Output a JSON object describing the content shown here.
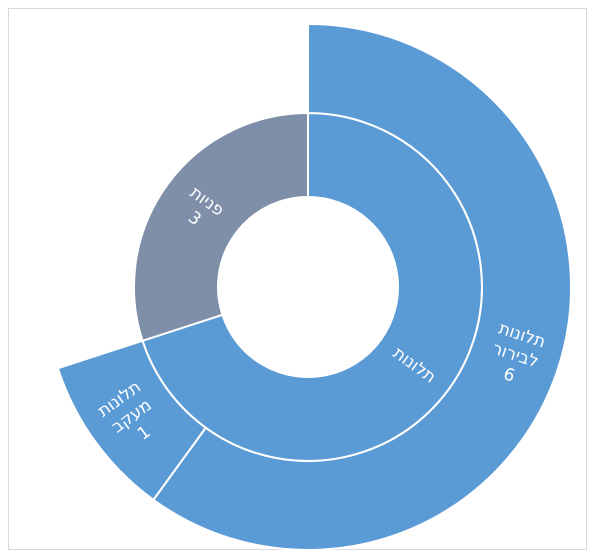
{
  "chart_data": {
    "type": "sunburst",
    "title": "",
    "inner_ring": [
      {
        "label": "תלונות",
        "value": 7,
        "color": "#5b9bd5"
      },
      {
        "label": "פניות",
        "value": 3,
        "value_label": "3",
        "color": "#7f8fa9"
      }
    ],
    "outer_ring": [
      {
        "parent": "תלונות",
        "label_lines": [
          "תלונות",
          "לבירור"
        ],
        "value": 6,
        "value_label": "6",
        "color": "#5b9bd5"
      },
      {
        "parent": "תלונות",
        "label_lines": [
          "תלונות",
          "מעקב"
        ],
        "value": 1,
        "value_label": "1",
        "color": "#5b9bd5"
      }
    ]
  }
}
